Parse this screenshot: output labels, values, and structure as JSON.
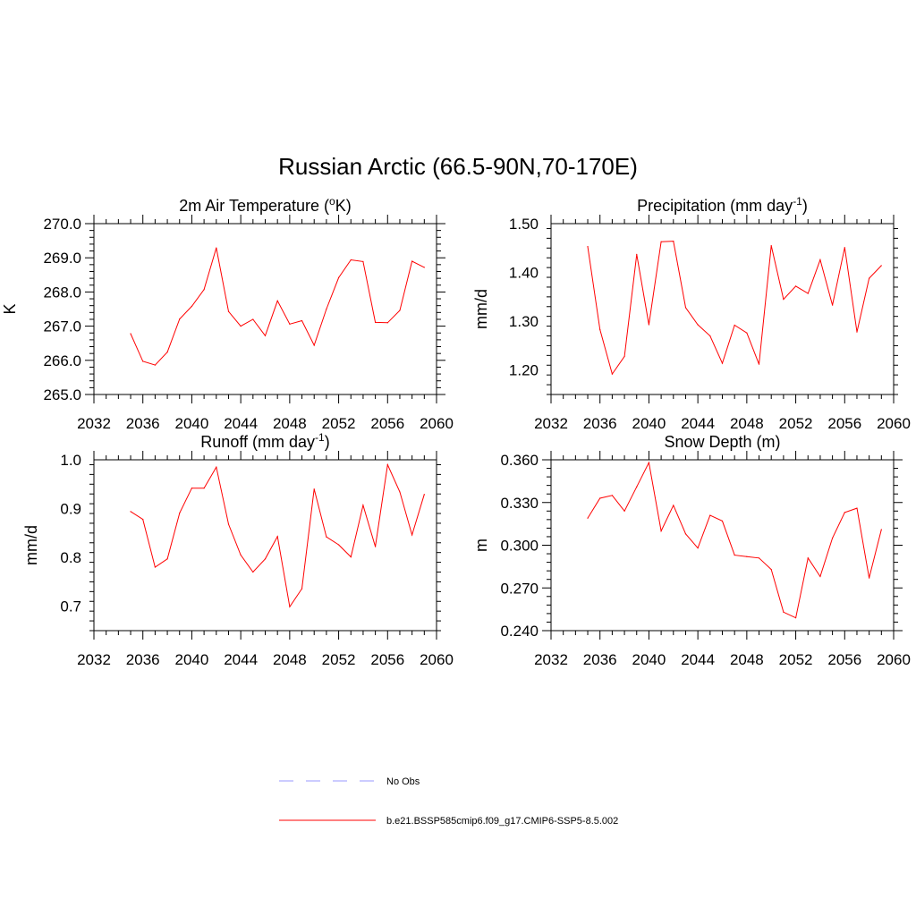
{
  "main_title": "Russian Arctic (66.5-90N,70-170E)",
  "colors": {
    "model_line": "#ff0000",
    "obs_line": "#9999ff",
    "axes": "#000000"
  },
  "legend": {
    "items": [
      {
        "label": "No Obs",
        "style": "dashed",
        "color": "#9999ff"
      },
      {
        "label": "b.e21.BSSP585cmip6.f09_g17.CMIP6-SSP5-8.5.002",
        "style": "solid",
        "color": "#ff0000"
      }
    ]
  },
  "chart_data": [
    {
      "type": "line",
      "title": "2m Air Temperature (°K)",
      "title_parts": [
        "2m Air Temperature (",
        "o",
        "K)"
      ],
      "ylabel": "K",
      "xlim": [
        2032,
        2060
      ],
      "ylim": [
        265.0,
        270.0
      ],
      "xticks": [
        "2032",
        "2036",
        "2040",
        "2044",
        "2048",
        "2052",
        "2056",
        "2060"
      ],
      "yticks": [
        "265.0",
        "266.0",
        "267.0",
        "268.0",
        "269.0",
        "270.0"
      ],
      "x": [
        2035,
        2036,
        2037,
        2038,
        2039,
        2040,
        2041,
        2042,
        2043,
        2044,
        2045,
        2046,
        2047,
        2048,
        2049,
        2050,
        2051,
        2052,
        2053,
        2054,
        2055,
        2056,
        2057,
        2058,
        2059
      ],
      "series": [
        {
          "values": [
            266.78,
            265.97,
            265.86,
            266.24,
            267.21,
            267.58,
            268.07,
            269.29,
            267.43,
            267.0,
            267.2,
            266.72,
            267.74,
            267.06,
            267.16,
            266.44,
            267.5,
            268.42,
            268.94,
            268.89,
            267.11,
            267.1,
            267.46,
            268.9,
            268.72
          ]
        }
      ]
    },
    {
      "type": "line",
      "title": "Precipitation (mm day-1)",
      "title_parts": [
        "Precipitation (mm day",
        "-1",
        ")"
      ],
      "ylabel": "mm/d",
      "xlim": [
        2032,
        2060
      ],
      "ylim": [
        1.15,
        1.5
      ],
      "xticks": [
        "2032",
        "2036",
        "2040",
        "2044",
        "2048",
        "2052",
        "2056",
        "2060"
      ],
      "yticks": [
        "1.20",
        "1.30",
        "1.40",
        "1.50"
      ],
      "x": [
        2035,
        2036,
        2037,
        2038,
        2039,
        2040,
        2041,
        2042,
        2043,
        2044,
        2045,
        2046,
        2047,
        2048,
        2049,
        2050,
        2051,
        2052,
        2053,
        2054,
        2055,
        2056,
        2057,
        2058,
        2059
      ],
      "series": [
        {
          "values": [
            1.453,
            1.283,
            1.192,
            1.228,
            1.437,
            1.293,
            1.463,
            1.464,
            1.328,
            1.293,
            1.27,
            1.214,
            1.292,
            1.276,
            1.212,
            1.455,
            1.345,
            1.372,
            1.357,
            1.426,
            1.333,
            1.451,
            1.278,
            1.388,
            1.414
          ]
        }
      ]
    },
    {
      "type": "line",
      "title": "Runoff (mm day-1)",
      "title_parts": [
        "Runoff (mm day",
        "-1",
        ")"
      ],
      "ylabel": "mm/d",
      "xlim": [
        2032,
        2060
      ],
      "ylim": [
        0.65,
        1.0
      ],
      "xticks": [
        "2032",
        "2036",
        "2040",
        "2044",
        "2048",
        "2052",
        "2056",
        "2060"
      ],
      "yticks": [
        "0.7",
        "0.8",
        "0.9",
        "1.0"
      ],
      "x": [
        2035,
        2036,
        2037,
        2038,
        2039,
        2040,
        2041,
        2042,
        2043,
        2044,
        2045,
        2046,
        2047,
        2048,
        2049,
        2050,
        2051,
        2052,
        2053,
        2054,
        2055,
        2056,
        2057,
        2058,
        2059
      ],
      "series": [
        {
          "values": [
            0.894,
            0.878,
            0.78,
            0.797,
            0.891,
            0.942,
            0.942,
            0.985,
            0.868,
            0.805,
            0.77,
            0.797,
            0.843,
            0.699,
            0.736,
            0.94,
            0.842,
            0.826,
            0.801,
            0.907,
            0.822,
            0.99,
            0.934,
            0.846,
            0.929
          ]
        }
      ]
    },
    {
      "type": "line",
      "title": "Snow Depth (m)",
      "title_parts": [
        "Snow Depth (m)",
        "",
        ""
      ],
      "ylabel": "m",
      "xlim": [
        2032,
        2060
      ],
      "ylim": [
        0.24,
        0.36
      ],
      "xticks": [
        "2032",
        "2036",
        "2040",
        "2044",
        "2048",
        "2052",
        "2056",
        "2060"
      ],
      "yticks": [
        "0.240",
        "0.270",
        "0.300",
        "0.330",
        "0.360"
      ],
      "x": [
        2035,
        2036,
        2037,
        2038,
        2039,
        2040,
        2041,
        2042,
        2043,
        2044,
        2045,
        2046,
        2047,
        2048,
        2049,
        2050,
        2051,
        2052,
        2053,
        2054,
        2055,
        2056,
        2057,
        2058,
        2059
      ],
      "series": [
        {
          "values": [
            0.319,
            0.333,
            0.335,
            0.324,
            0.341,
            0.358,
            0.31,
            0.328,
            0.308,
            0.298,
            0.321,
            0.317,
            0.293,
            0.292,
            0.291,
            0.283,
            0.253,
            0.249,
            0.291,
            0.278,
            0.305,
            0.323,
            0.326,
            0.277,
            0.311
          ]
        }
      ]
    }
  ]
}
